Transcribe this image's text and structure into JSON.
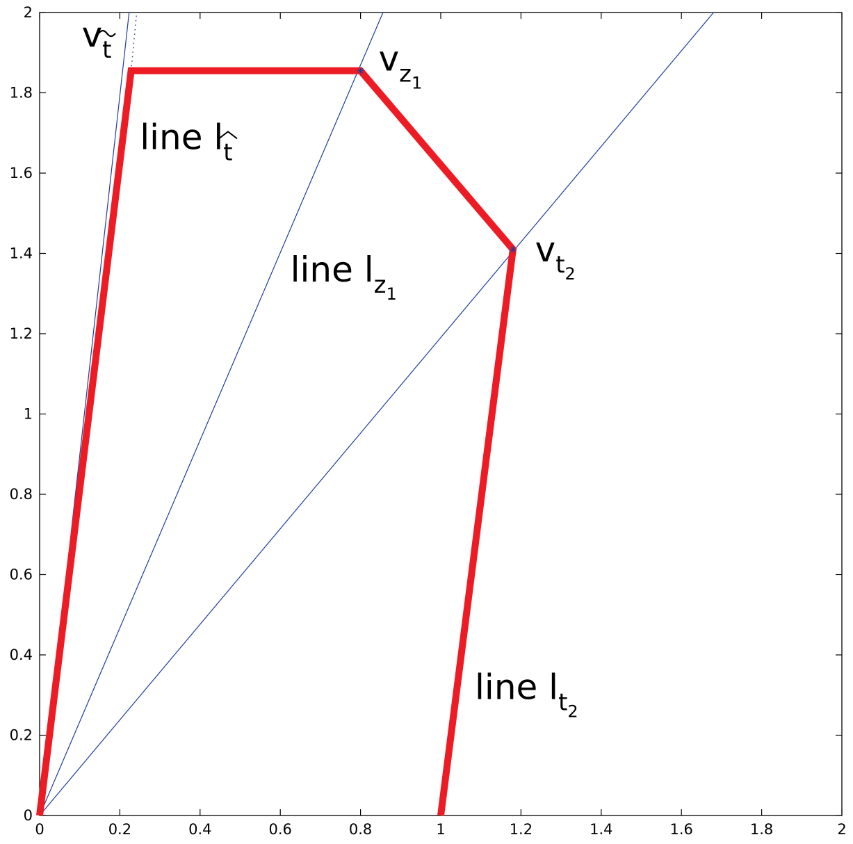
{
  "chart_data": {
    "type": "line",
    "title": "",
    "xlabel": "",
    "ylabel": "",
    "xlim": [
      0,
      2
    ],
    "ylim": [
      0,
      2
    ],
    "grid": false,
    "xticks": [
      0,
      0.2,
      0.4,
      0.6,
      0.8,
      1,
      1.2,
      1.4,
      1.6,
      1.8,
      2
    ],
    "xtick_labels": [
      "0",
      "0.2",
      "0.4",
      "0.6",
      "0.8",
      "1",
      "1.2",
      "1.4",
      "1.6",
      "1.8",
      "2"
    ],
    "yticks": [
      0,
      0.2,
      0.4,
      0.6,
      0.8,
      1,
      1.2,
      1.4,
      1.6,
      1.8,
      2
    ],
    "ytick_labels": [
      "0",
      "0.2",
      "0.4",
      "0.6",
      "0.8",
      "1",
      "1.2",
      "1.4",
      "1.6",
      "1.8",
      "2"
    ],
    "colors": {
      "red": "#ed1c24",
      "blue": "#1f3c99"
    },
    "series": [
      {
        "style": "thin-blue",
        "x": [
          0,
          0.223
        ],
        "y": [
          0,
          2
        ]
      },
      {
        "style": "thin-blue",
        "x": [
          0,
          0.856
        ],
        "y": [
          0,
          2
        ]
      },
      {
        "style": "thin-blue",
        "x": [
          0,
          1.68
        ],
        "y": [
          0,
          2
        ]
      },
      {
        "style": "dotted-blue",
        "x": [
          0.228,
          0.242
        ],
        "y": [
          1.855,
          2
        ]
      },
      {
        "style": "thick-red",
        "x": [
          0,
          0.228,
          0.8,
          1.18,
          1
        ],
        "y": [
          0,
          1.855,
          1.855,
          1.41,
          0
        ]
      }
    ],
    "markers": [
      {
        "x": 0.8,
        "y": 1.855
      },
      {
        "x": 1.18,
        "y": 1.41
      }
    ],
    "annotations": [
      {
        "id": "v-t-tilde",
        "base": "v",
        "sub": "t",
        "accent": "~",
        "x": 0.105,
        "y": 1.915
      },
      {
        "id": "v-z1",
        "base": "v",
        "sub": "z",
        "subsub": "1",
        "x": 0.845,
        "y": 1.855
      },
      {
        "id": "v-t2",
        "base": "v",
        "sub": "t",
        "subsub": "2",
        "x": 1.235,
        "y": 1.38
      },
      {
        "id": "line-l-t-hat",
        "base": "line l",
        "sub": "t",
        "accent": "^",
        "x": 0.25,
        "y": 1.66
      },
      {
        "id": "line-l-z1",
        "base": "line l",
        "sub": "z",
        "subsub": "1",
        "x": 0.625,
        "y": 1.33
      },
      {
        "id": "line-l-t2",
        "base": "line l",
        "sub": "t",
        "subsub": "2",
        "x": 1.085,
        "y": 0.29
      }
    ]
  }
}
